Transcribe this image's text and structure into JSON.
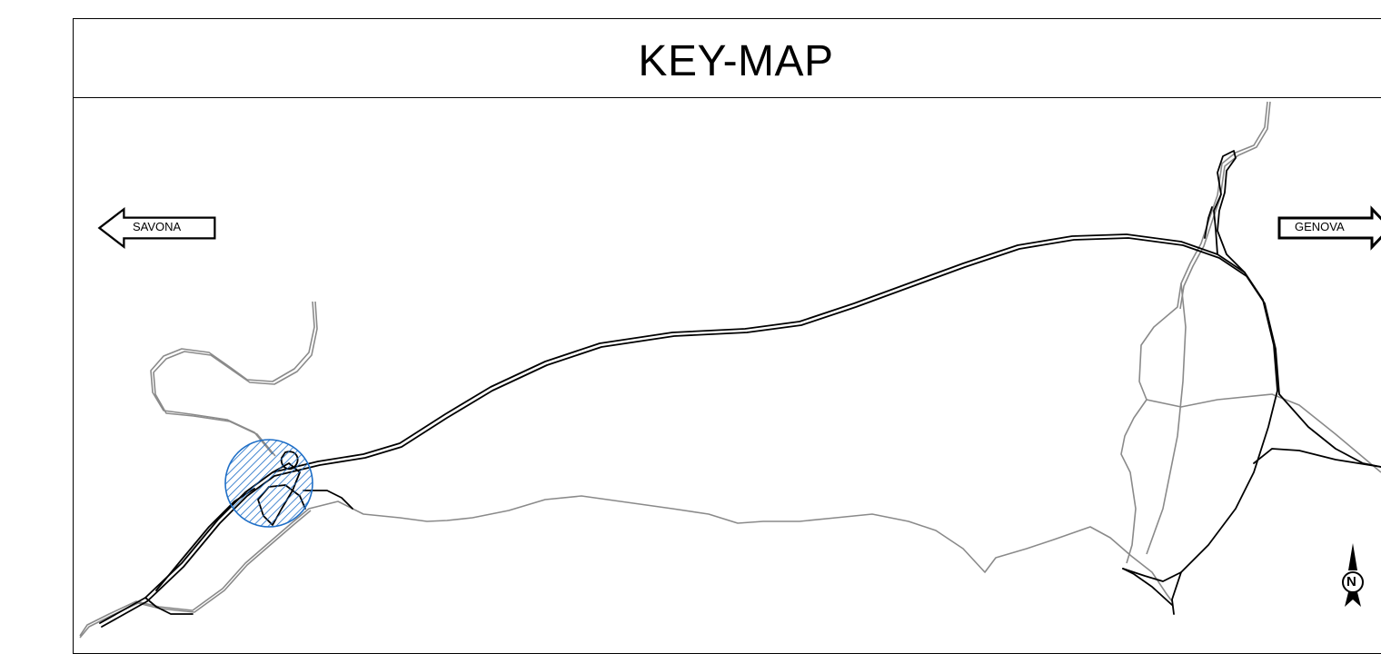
{
  "title": "KEY-MAP",
  "directions": {
    "west": "SAVONA",
    "east": "GENOVA"
  },
  "north_arrow": {
    "label": "N",
    "icon": "north-arrow-icon"
  },
  "colors": {
    "frame": "#000000",
    "motorway": "#000000",
    "secondary_road": "#8a8a8a",
    "highlight_fill": "#3a8fe0",
    "highlight_stroke": "#1f6fc7"
  }
}
